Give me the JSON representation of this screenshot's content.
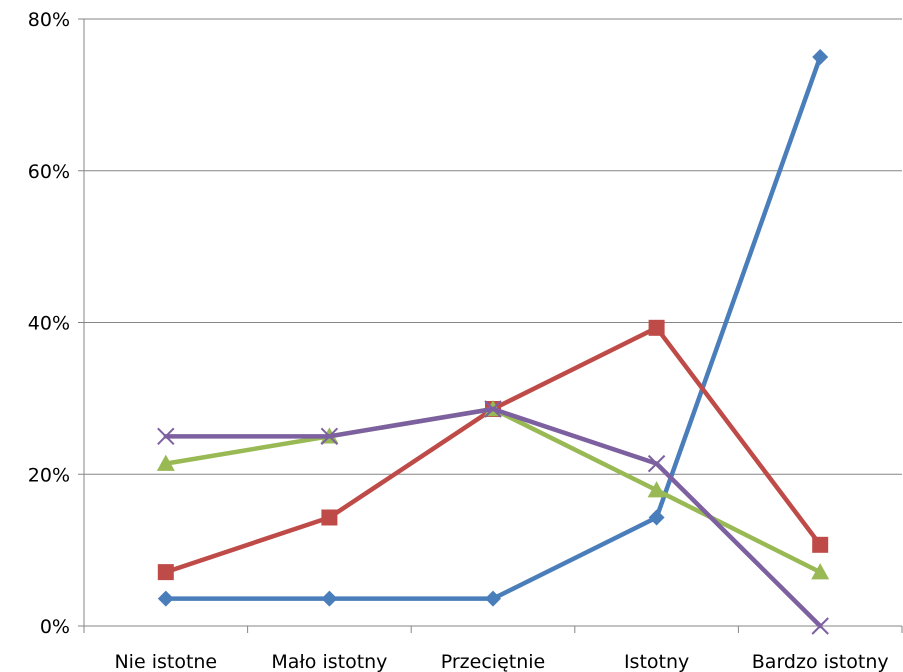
{
  "chart_data": {
    "type": "line",
    "categories": [
      "Nie istotne",
      "Mało istotny",
      "Przeciętnie",
      "Istotny",
      "Bardzo istotny"
    ],
    "series": [
      {
        "color": "#4a7ebb",
        "marker": "diamond",
        "values": [
          3.6,
          3.6,
          3.6,
          14.3,
          75.0
        ]
      },
      {
        "color": "#be4b48",
        "marker": "square",
        "values": [
          7.1,
          14.3,
          28.6,
          39.3,
          10.7
        ]
      },
      {
        "color": "#98b954",
        "marker": "triangle",
        "values": [
          21.4,
          25.0,
          28.6,
          17.9,
          7.1
        ]
      },
      {
        "color": "#7d60a0",
        "marker": "x",
        "values": [
          25.0,
          25.0,
          28.6,
          21.4,
          0.0
        ]
      }
    ],
    "yticks": [
      "0%",
      "20%",
      "40%",
      "60%",
      "80%"
    ],
    "ylim": [
      0,
      80
    ],
    "grid": true,
    "legend": "none"
  }
}
